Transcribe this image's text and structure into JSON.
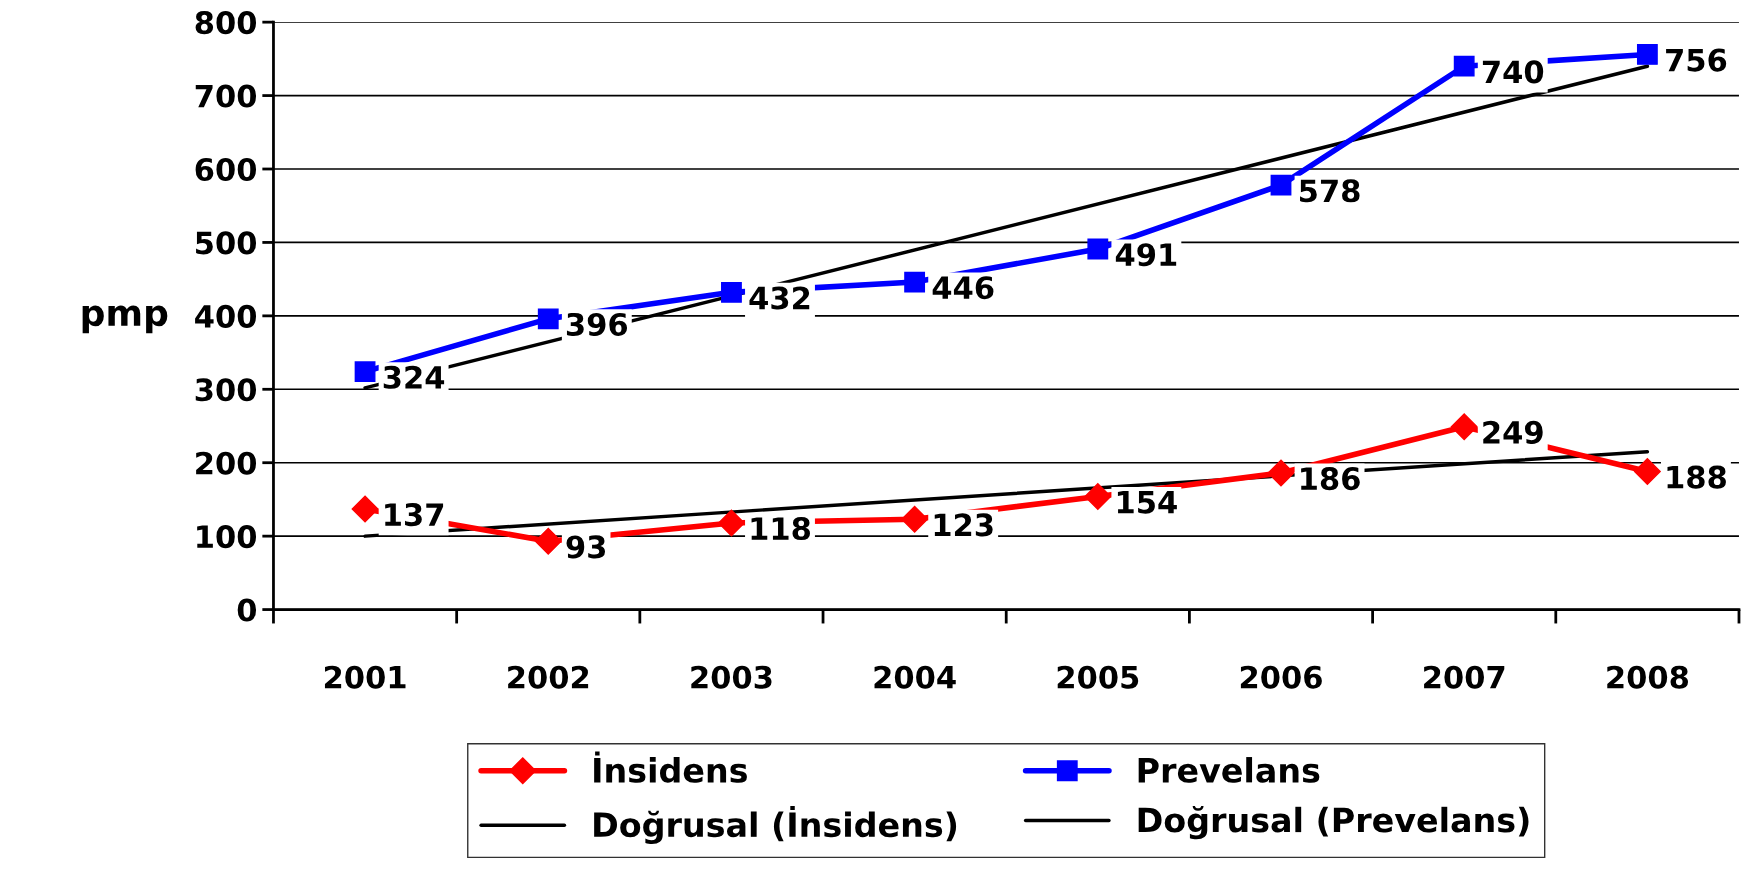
{
  "chart_data": {
    "type": "line",
    "ylabel": "pmp",
    "categories": [
      "2001",
      "2002",
      "2003",
      "2004",
      "2005",
      "2006",
      "2007",
      "2008"
    ],
    "series": [
      {
        "name": "İnsidens",
        "color": "#ff0000",
        "marker": "diamond",
        "data_labels": true,
        "values": [
          137,
          93,
          118,
          123,
          154,
          186,
          249,
          188
        ]
      },
      {
        "name": "Prevelans",
        "color": "#0000ff",
        "marker": "square",
        "data_labels": true,
        "values": [
          324,
          396,
          432,
          446,
          491,
          578,
          740,
          756
        ]
      },
      {
        "name": "Doğrusal (İnsidens)",
        "color": "#000000",
        "marker": "none",
        "values": [
          100,
          null,
          null,
          null,
          null,
          null,
          null,
          215
        ]
      },
      {
        "name": "Doğrusal (Prevelans)",
        "color": "#000000",
        "marker": "none",
        "values": [
          302,
          null,
          null,
          null,
          null,
          null,
          null,
          740
        ]
      }
    ],
    "ylim": [
      0,
      800
    ],
    "yticks": [
      0,
      100,
      200,
      300,
      400,
      500,
      600,
      700,
      800
    ],
    "grid": "y",
    "legend": "bottom",
    "line_style": "solid"
  }
}
